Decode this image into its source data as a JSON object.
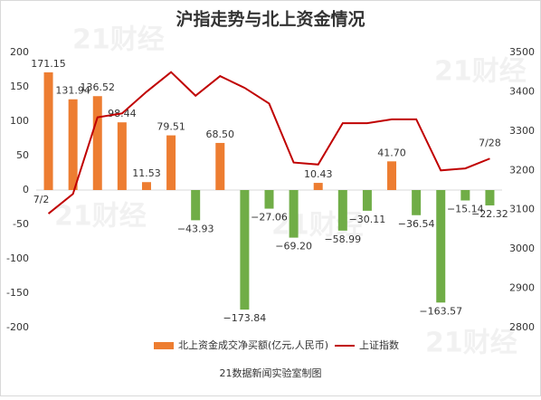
{
  "chart_data": {
    "type": "bar-line",
    "title": "沪指走势与北上资金情况",
    "source": "21数据新闻实验室制图",
    "watermark": "21财经",
    "categories": [
      "7/2",
      null,
      null,
      null,
      null,
      null,
      null,
      null,
      null,
      null,
      null,
      null,
      null,
      null,
      null,
      null,
      null,
      null,
      "7/28"
    ],
    "series": [
      {
        "name": "北上资金成交净买额(亿元,人民币)",
        "type": "bar",
        "color": "#ed7d31",
        "negative_color": "#70ad47",
        "values": [
          171.15,
          131.94,
          136.52,
          98.44,
          11.53,
          79.51,
          -43.93,
          68.5,
          -173.84,
          -27.06,
          -69.2,
          10.43,
          -58.99,
          -30.11,
          41.7,
          -36.54,
          -163.57,
          -15.14,
          -22.32
        ],
        "value_labels": [
          "171.15",
          "131.94",
          "136.52",
          "98.44",
          "11.53",
          "79.51",
          "−43.93",
          "68.50",
          "−173.84",
          "−27.06",
          "−69.20",
          "10.43",
          "−58.99",
          "−30.11",
          "41.70",
          "−36.54",
          "−163.57",
          "−15.14",
          "−22.32"
        ]
      },
      {
        "name": "上证指数",
        "type": "line",
        "axis": "y2",
        "color": "#c00000",
        "values": [
          3090,
          3140,
          3335,
          3345,
          3400,
          3450,
          3390,
          3440,
          3410,
          3370,
          3220,
          3215,
          3320,
          3320,
          3330,
          3330,
          3200,
          3205,
          3230
        ]
      }
    ],
    "ylim": [
      -200,
      200
    ],
    "yticks": [
      -200,
      -150,
      -100,
      -50,
      0,
      50,
      100,
      150,
      200
    ],
    "y2lim": [
      2800,
      3500
    ],
    "y2ticks": [
      2800,
      2900,
      3000,
      3100,
      3200,
      3300,
      3400,
      3500
    ],
    "legend": "bottom"
  }
}
